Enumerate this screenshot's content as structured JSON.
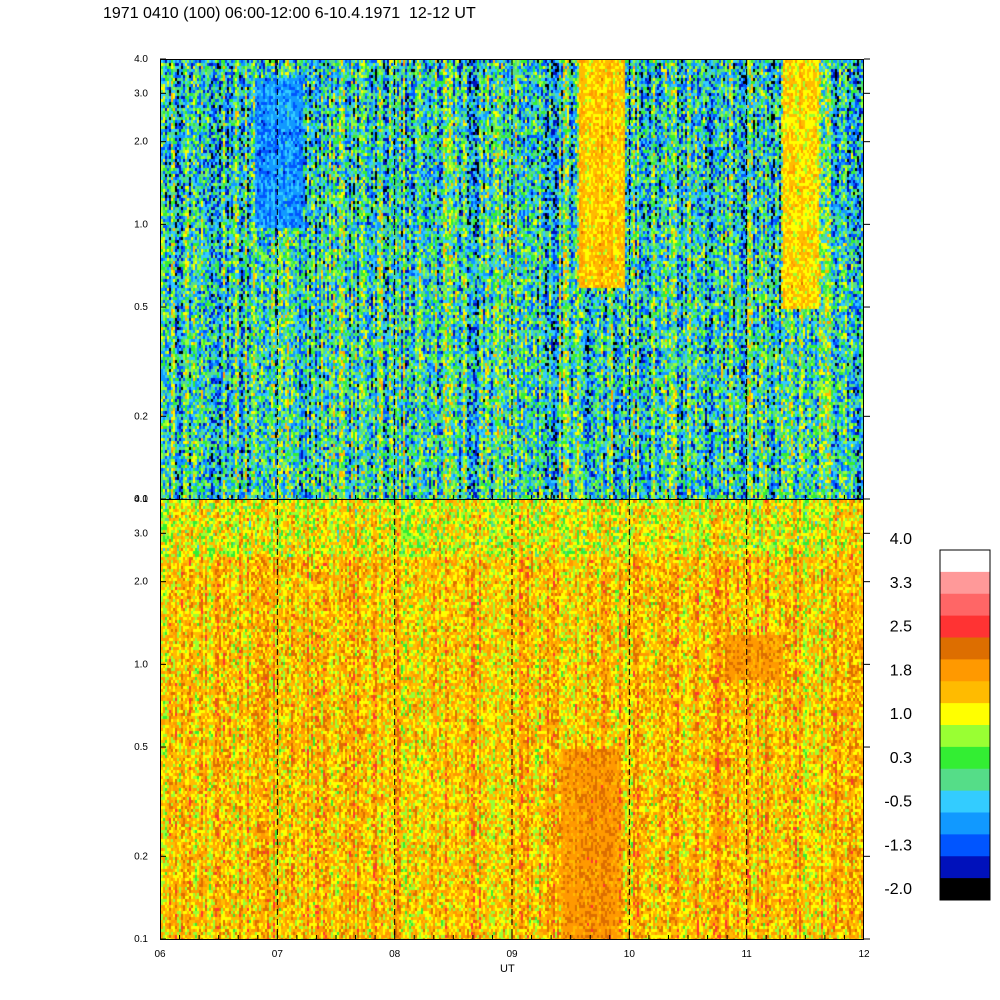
{
  "title": "1971 0410 (100) 06:00-12:00 6-10.4.1971  12-12 UT",
  "xlabel": "UT",
  "colorbar": {
    "labels": [
      "4.0",
      "3.3",
      "2.5",
      "1.8",
      "1.0",
      "0.3",
      "-0.5",
      "-1.3",
      "-2.0"
    ],
    "colors": [
      "#ffffff",
      "#ff9999",
      "#ff6666",
      "#ff3333",
      "#dd6e00",
      "#ff9900",
      "#ffbb00",
      "#ffff00",
      "#99ff33",
      "#33ee33",
      "#55dd88",
      "#33ccff",
      "#1199ff",
      "#0055ff",
      "#0011bb",
      "#000000"
    ]
  },
  "chart_data": [
    {
      "type": "heatmap",
      "panel": "top",
      "x_ticks": [
        "06",
        "07",
        "08",
        "09",
        "10",
        "11",
        "12"
      ],
      "x_range": [
        6,
        12
      ],
      "y_ticks": [
        "0.1",
        "0.2",
        "0.5",
        "1.0",
        "2.0",
        "3.0",
        "4.0"
      ],
      "y_range": [
        0.1,
        4.0
      ],
      "y_scale": "log",
      "dominant_value_range": [
        -1.0,
        1.0
      ],
      "grid": "dashed vertical lines at each hour",
      "features": [
        {
          "x_range": [
            9.55,
            9.95
          ],
          "y_range": [
            0.6,
            4.0
          ],
          "value": 2.3
        },
        {
          "x_range": [
            11.3,
            11.6
          ],
          "y_range": [
            0.5,
            4.0
          ],
          "value": 2.0
        },
        {
          "x_range": [
            6.8,
            7.2
          ],
          "y_range": [
            1.0,
            3.5
          ],
          "value": -1.0
        }
      ]
    },
    {
      "type": "heatmap",
      "panel": "bottom",
      "x_ticks": [
        "06",
        "07",
        "08",
        "09",
        "10",
        "11",
        "12"
      ],
      "x_range": [
        6,
        12
      ],
      "y_ticks": [
        "0.1",
        "0.2",
        "0.5",
        "1.0",
        "2.0",
        "3.0",
        "4.0"
      ],
      "y_range": [
        0.1,
        4.0
      ],
      "y_scale": "log",
      "dominant_value_range": [
        1.0,
        2.2
      ],
      "grid": "dashed vertical lines at each hour",
      "features": [
        {
          "x_range": [
            9.4,
            9.9
          ],
          "y_range": [
            0.1,
            0.5
          ],
          "value": 2.2
        },
        {
          "x_range": [
            10.8,
            11.3
          ],
          "y_range": [
            0.9,
            1.3
          ],
          "value": 2.1
        }
      ]
    }
  ]
}
